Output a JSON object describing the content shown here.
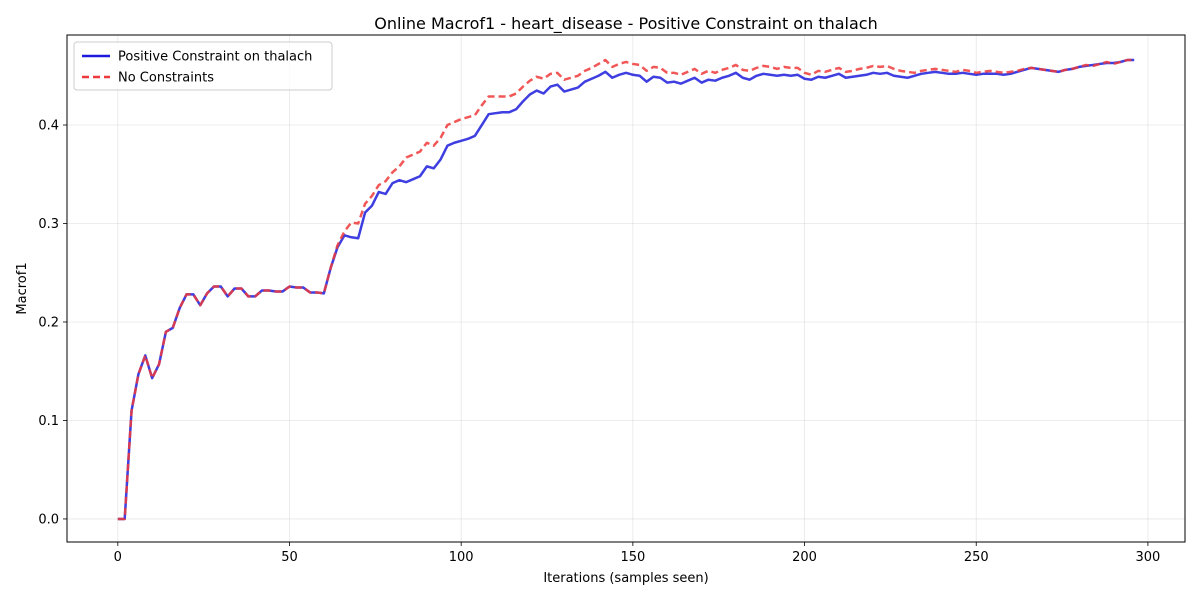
{
  "chart_data": {
    "type": "line",
    "title": "Online Macrof1 - heart_disease - Positive Constraint on thalach",
    "xlabel": "Iterations (samples seen)",
    "ylabel": "Macrof1",
    "xlim": [
      -14.8,
      310.8
    ],
    "ylim": [
      -0.0234,
      0.4914
    ],
    "xticks": [
      0,
      50,
      100,
      150,
      200,
      250,
      300
    ],
    "xtick_labels": [
      "0",
      "50",
      "100",
      "150",
      "200",
      "250",
      "300"
    ],
    "yticks": [
      0.0,
      0.1,
      0.2,
      0.3,
      0.4
    ],
    "ytick_labels": [
      "0.0",
      "0.1",
      "0.2",
      "0.3",
      "0.4"
    ],
    "grid": true,
    "legend_position": "top-left",
    "series": [
      {
        "name": "Positive Constraint on thalach",
        "color": "#1c1cdc",
        "style": "solid",
        "points": [
          [
            0,
            0.0
          ],
          [
            2,
            0.0
          ],
          [
            4,
            0.11
          ],
          [
            6,
            0.147
          ],
          [
            8,
            0.166
          ],
          [
            10,
            0.143
          ],
          [
            12,
            0.157
          ],
          [
            14,
            0.19
          ],
          [
            16,
            0.194
          ],
          [
            18,
            0.214
          ],
          [
            20,
            0.228
          ],
          [
            22,
            0.228
          ],
          [
            24,
            0.217
          ],
          [
            26,
            0.229
          ],
          [
            28,
            0.236
          ],
          [
            30,
            0.236
          ],
          [
            32,
            0.226
          ],
          [
            34,
            0.234
          ],
          [
            36,
            0.234
          ],
          [
            38,
            0.226
          ],
          [
            40,
            0.226
          ],
          [
            42,
            0.232
          ],
          [
            44,
            0.232
          ],
          [
            46,
            0.231
          ],
          [
            48,
            0.231
          ],
          [
            50,
            0.236
          ],
          [
            52,
            0.235
          ],
          [
            54,
            0.235
          ],
          [
            56,
            0.23
          ],
          [
            58,
            0.23
          ],
          [
            60,
            0.229
          ],
          [
            62,
            0.255
          ],
          [
            64,
            0.276
          ],
          [
            66,
            0.288
          ],
          [
            68,
            0.286
          ],
          [
            70,
            0.285
          ],
          [
            72,
            0.311
          ],
          [
            74,
            0.318
          ],
          [
            76,
            0.332
          ],
          [
            78,
            0.33
          ],
          [
            80,
            0.341
          ],
          [
            82,
            0.344
          ],
          [
            84,
            0.342
          ],
          [
            86,
            0.345
          ],
          [
            88,
            0.348
          ],
          [
            90,
            0.358
          ],
          [
            92,
            0.356
          ],
          [
            94,
            0.365
          ],
          [
            96,
            0.379
          ],
          [
            98,
            0.382
          ],
          [
            100,
            0.384
          ],
          [
            102,
            0.386
          ],
          [
            104,
            0.389
          ],
          [
            106,
            0.4
          ],
          [
            108,
            0.411
          ],
          [
            110,
            0.412
          ],
          [
            112,
            0.413
          ],
          [
            114,
            0.413
          ],
          [
            116,
            0.416
          ],
          [
            118,
            0.424
          ],
          [
            120,
            0.431
          ],
          [
            122,
            0.435
          ],
          [
            124,
            0.432
          ],
          [
            126,
            0.439
          ],
          [
            128,
            0.441
          ],
          [
            130,
            0.434
          ],
          [
            132,
            0.436
          ],
          [
            134,
            0.438
          ],
          [
            136,
            0.444
          ],
          [
            138,
            0.447
          ],
          [
            140,
            0.45
          ],
          [
            142,
            0.454
          ],
          [
            144,
            0.448
          ],
          [
            146,
            0.451
          ],
          [
            148,
            0.453
          ],
          [
            150,
            0.451
          ],
          [
            152,
            0.45
          ],
          [
            154,
            0.444
          ],
          [
            156,
            0.449
          ],
          [
            158,
            0.448
          ],
          [
            160,
            0.443
          ],
          [
            162,
            0.444
          ],
          [
            164,
            0.442
          ],
          [
            166,
            0.445
          ],
          [
            168,
            0.448
          ],
          [
            170,
            0.443
          ],
          [
            172,
            0.446
          ],
          [
            174,
            0.445
          ],
          [
            176,
            0.448
          ],
          [
            178,
            0.45
          ],
          [
            180,
            0.453
          ],
          [
            182,
            0.448
          ],
          [
            184,
            0.446
          ],
          [
            186,
            0.45
          ],
          [
            188,
            0.452
          ],
          [
            190,
            0.451
          ],
          [
            192,
            0.45
          ],
          [
            194,
            0.451
          ],
          [
            196,
            0.45
          ],
          [
            198,
            0.451
          ],
          [
            200,
            0.447
          ],
          [
            202,
            0.446
          ],
          [
            204,
            0.449
          ],
          [
            206,
            0.448
          ],
          [
            208,
            0.45
          ],
          [
            210,
            0.452
          ],
          [
            212,
            0.448
          ],
          [
            214,
            0.449
          ],
          [
            216,
            0.45
          ],
          [
            218,
            0.451
          ],
          [
            220,
            0.453
          ],
          [
            222,
            0.452
          ],
          [
            224,
            0.453
          ],
          [
            226,
            0.45
          ],
          [
            228,
            0.449
          ],
          [
            230,
            0.448
          ],
          [
            232,
            0.45
          ],
          [
            234,
            0.452
          ],
          [
            236,
            0.453
          ],
          [
            238,
            0.454
          ],
          [
            240,
            0.453
          ],
          [
            242,
            0.452
          ],
          [
            244,
            0.452
          ],
          [
            246,
            0.453
          ],
          [
            248,
            0.452
          ],
          [
            250,
            0.451
          ],
          [
            252,
            0.452
          ],
          [
            254,
            0.452
          ],
          [
            256,
            0.452
          ],
          [
            258,
            0.451
          ],
          [
            260,
            0.452
          ],
          [
            262,
            0.454
          ],
          [
            264,
            0.456
          ],
          [
            266,
            0.458
          ],
          [
            268,
            0.457
          ],
          [
            270,
            0.456
          ],
          [
            272,
            0.455
          ],
          [
            274,
            0.454
          ],
          [
            276,
            0.456
          ],
          [
            278,
            0.457
          ],
          [
            280,
            0.459
          ],
          [
            282,
            0.46
          ],
          [
            284,
            0.461
          ],
          [
            286,
            0.462
          ],
          [
            288,
            0.463
          ],
          [
            290,
            0.463
          ],
          [
            292,
            0.464
          ],
          [
            294,
            0.466
          ],
          [
            296,
            0.466
          ]
        ]
      },
      {
        "name": "No Constraints",
        "color": "#ee3a3a",
        "style": "dashed",
        "points": [
          [
            0,
            0.0
          ],
          [
            2,
            0.0
          ],
          [
            4,
            0.11
          ],
          [
            6,
            0.147
          ],
          [
            8,
            0.166
          ],
          [
            10,
            0.143
          ],
          [
            12,
            0.157
          ],
          [
            14,
            0.19
          ],
          [
            16,
            0.194
          ],
          [
            18,
            0.214
          ],
          [
            20,
            0.228
          ],
          [
            22,
            0.228
          ],
          [
            24,
            0.217
          ],
          [
            26,
            0.229
          ],
          [
            28,
            0.236
          ],
          [
            30,
            0.236
          ],
          [
            32,
            0.226
          ],
          [
            34,
            0.234
          ],
          [
            36,
            0.234
          ],
          [
            38,
            0.226
          ],
          [
            40,
            0.226
          ],
          [
            42,
            0.232
          ],
          [
            44,
            0.232
          ],
          [
            46,
            0.231
          ],
          [
            48,
            0.231
          ],
          [
            50,
            0.236
          ],
          [
            52,
            0.235
          ],
          [
            54,
            0.235
          ],
          [
            56,
            0.23
          ],
          [
            58,
            0.23
          ],
          [
            60,
            0.229
          ],
          [
            62,
            0.255
          ],
          [
            64,
            0.278
          ],
          [
            66,
            0.292
          ],
          [
            68,
            0.301
          ],
          [
            70,
            0.3
          ],
          [
            72,
            0.32
          ],
          [
            74,
            0.328
          ],
          [
            76,
            0.339
          ],
          [
            78,
            0.343
          ],
          [
            80,
            0.352
          ],
          [
            82,
            0.358
          ],
          [
            84,
            0.367
          ],
          [
            86,
            0.37
          ],
          [
            88,
            0.373
          ],
          [
            90,
            0.382
          ],
          [
            92,
            0.379
          ],
          [
            94,
            0.387
          ],
          [
            96,
            0.4
          ],
          [
            98,
            0.403
          ],
          [
            100,
            0.406
          ],
          [
            102,
            0.408
          ],
          [
            104,
            0.41
          ],
          [
            106,
            0.42
          ],
          [
            108,
            0.429
          ],
          [
            110,
            0.429
          ],
          [
            112,
            0.429
          ],
          [
            114,
            0.429
          ],
          [
            116,
            0.432
          ],
          [
            118,
            0.439
          ],
          [
            120,
            0.445
          ],
          [
            122,
            0.449
          ],
          [
            124,
            0.447
          ],
          [
            126,
            0.452
          ],
          [
            128,
            0.453
          ],
          [
            130,
            0.446
          ],
          [
            132,
            0.448
          ],
          [
            134,
            0.45
          ],
          [
            136,
            0.455
          ],
          [
            138,
            0.458
          ],
          [
            140,
            0.462
          ],
          [
            142,
            0.466
          ],
          [
            144,
            0.459
          ],
          [
            146,
            0.462
          ],
          [
            148,
            0.464
          ],
          [
            150,
            0.462
          ],
          [
            152,
            0.461
          ],
          [
            154,
            0.455
          ],
          [
            156,
            0.459
          ],
          [
            158,
            0.458
          ],
          [
            160,
            0.453
          ],
          [
            162,
            0.453
          ],
          [
            164,
            0.451
          ],
          [
            166,
            0.454
          ],
          [
            168,
            0.457
          ],
          [
            170,
            0.452
          ],
          [
            172,
            0.455
          ],
          [
            174,
            0.453
          ],
          [
            176,
            0.456
          ],
          [
            178,
            0.458
          ],
          [
            180,
            0.461
          ],
          [
            182,
            0.456
          ],
          [
            184,
            0.455
          ],
          [
            186,
            0.458
          ],
          [
            188,
            0.46
          ],
          [
            190,
            0.459
          ],
          [
            192,
            0.457
          ],
          [
            194,
            0.459
          ],
          [
            196,
            0.458
          ],
          [
            198,
            0.458
          ],
          [
            200,
            0.453
          ],
          [
            202,
            0.451
          ],
          [
            204,
            0.455
          ],
          [
            206,
            0.454
          ],
          [
            208,
            0.456
          ],
          [
            210,
            0.458
          ],
          [
            212,
            0.454
          ],
          [
            214,
            0.455
          ],
          [
            216,
            0.457
          ],
          [
            218,
            0.458
          ],
          [
            220,
            0.46
          ],
          [
            222,
            0.459
          ],
          [
            224,
            0.46
          ],
          [
            226,
            0.457
          ],
          [
            228,
            0.455
          ],
          [
            230,
            0.454
          ],
          [
            232,
            0.453
          ],
          [
            234,
            0.455
          ],
          [
            236,
            0.456
          ],
          [
            238,
            0.457
          ],
          [
            240,
            0.456
          ],
          [
            242,
            0.455
          ],
          [
            244,
            0.454
          ],
          [
            246,
            0.456
          ],
          [
            248,
            0.455
          ],
          [
            250,
            0.453
          ],
          [
            252,
            0.454
          ],
          [
            254,
            0.455
          ],
          [
            256,
            0.454
          ],
          [
            258,
            0.453
          ],
          [
            260,
            0.454
          ],
          [
            262,
            0.455
          ],
          [
            264,
            0.457
          ],
          [
            266,
            0.458
          ],
          [
            268,
            0.457
          ],
          [
            270,
            0.456
          ],
          [
            272,
            0.455
          ],
          [
            274,
            0.454
          ],
          [
            276,
            0.456
          ],
          [
            278,
            0.457
          ],
          [
            280,
            0.459
          ],
          [
            282,
            0.461
          ],
          [
            284,
            0.46
          ],
          [
            286,
            0.462
          ],
          [
            288,
            0.464
          ],
          [
            290,
            0.462
          ],
          [
            292,
            0.464
          ],
          [
            294,
            0.466
          ],
          [
            296,
            0.466
          ]
        ]
      }
    ]
  }
}
